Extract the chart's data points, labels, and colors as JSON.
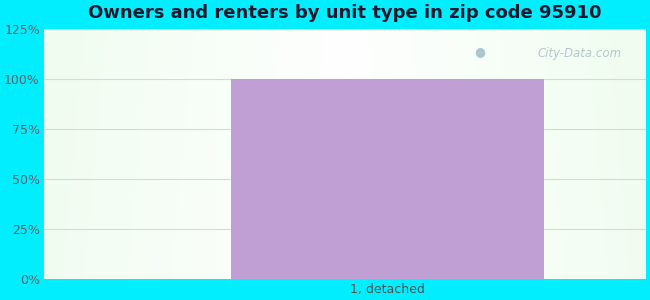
{
  "title": "Owners and renters by unit type in zip code 95910",
  "categories": [
    "1, detached"
  ],
  "values": [
    100
  ],
  "bar_color": "#bf9fd4",
  "ylim": [
    0,
    125
  ],
  "yticks": [
    0,
    25,
    50,
    75,
    100,
    125
  ],
  "ytick_labels": [
    "0%",
    "25%",
    "50%",
    "75%",
    "100%",
    "125%"
  ],
  "title_fontsize": 13,
  "tick_fontsize": 9,
  "watermark": "City-Data.com",
  "bg_outer_color": "#00eeff",
  "grid_color": "#d0ddd0"
}
